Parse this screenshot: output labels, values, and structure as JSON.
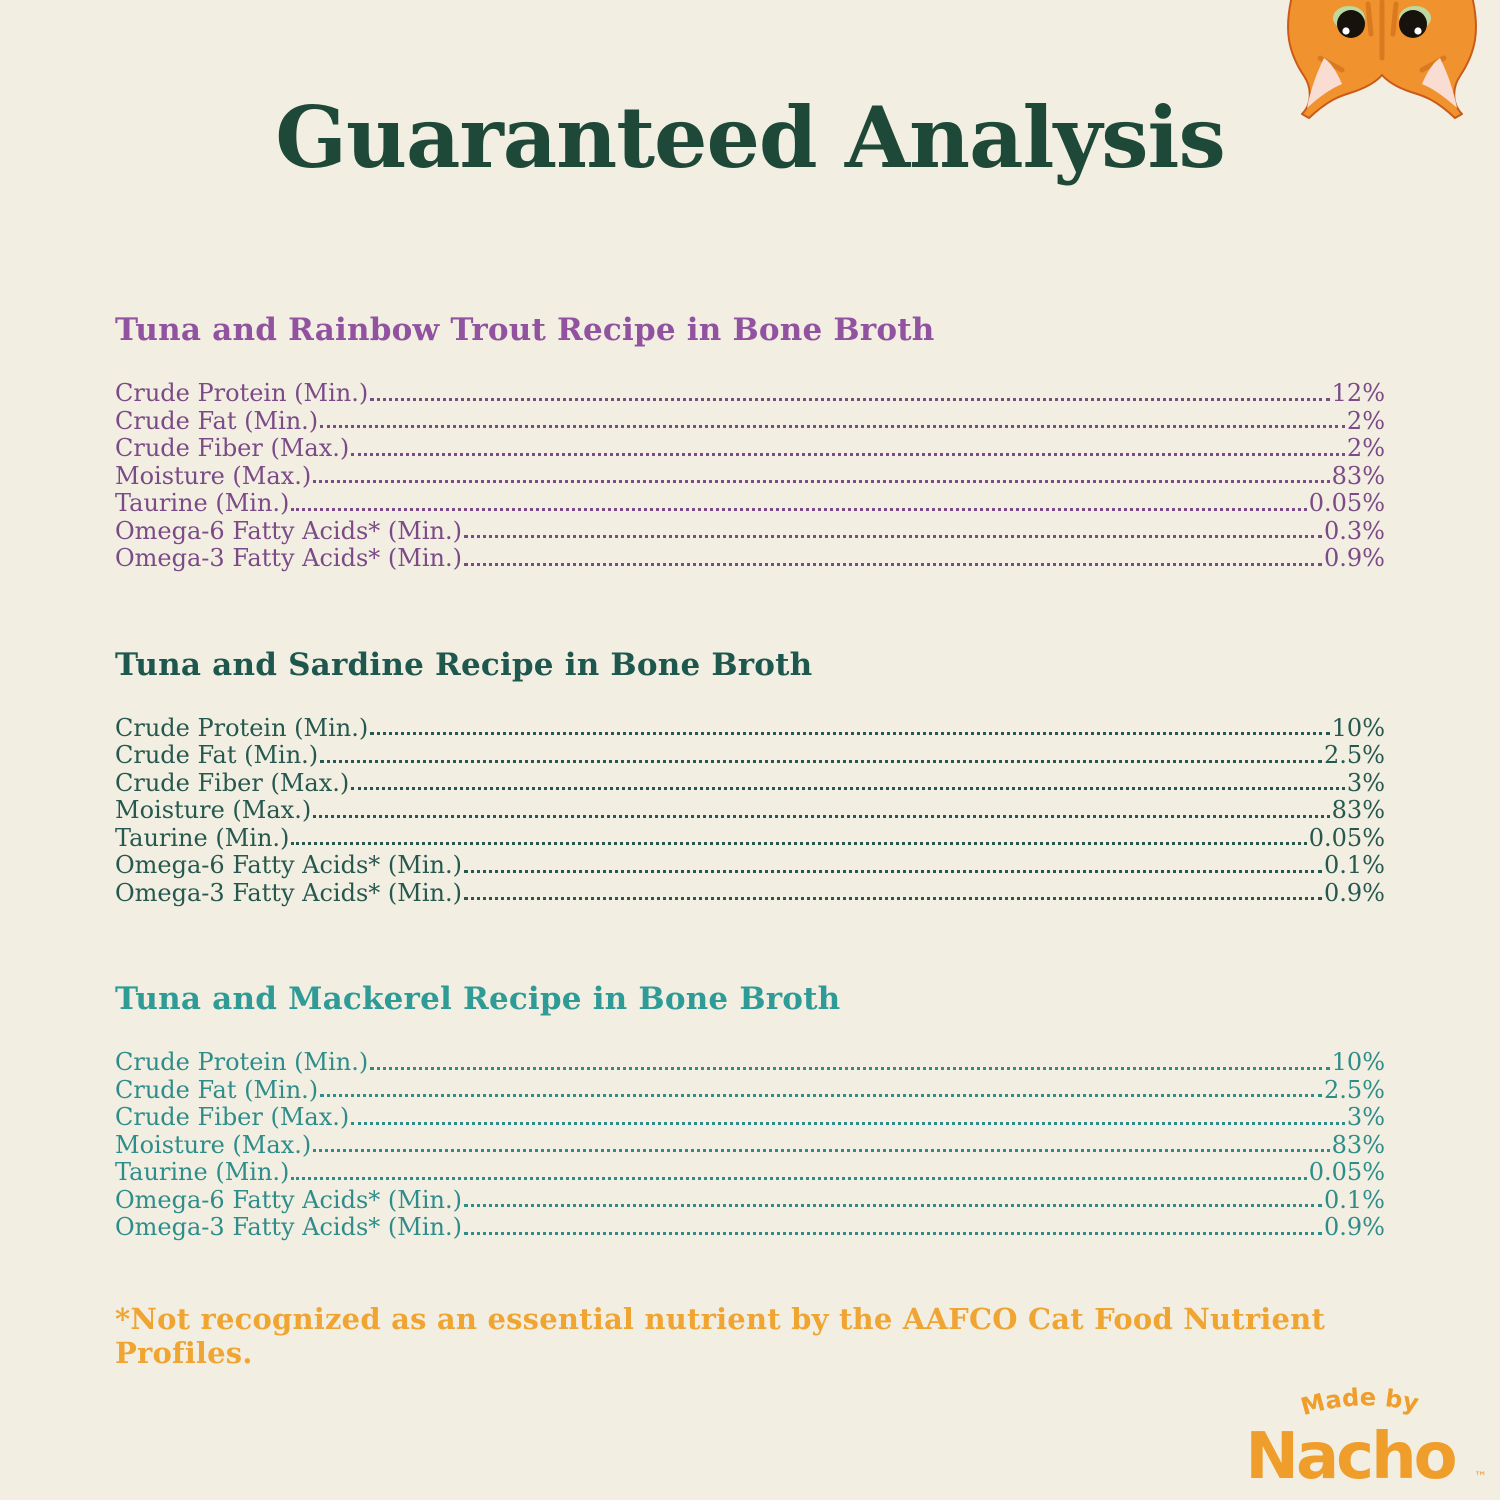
{
  "title": "Guaranteed Analysis",
  "sections": [
    {
      "heading": "Tuna and Rainbow Trout Recipe in Bone Broth",
      "heading_color": "#9153a0",
      "row_color": "#7b4a87",
      "rows": [
        {
          "label": "Crude Protein (Min.)",
          "value": "12%"
        },
        {
          "label": "Crude Fat (Min.)",
          "value": "2%"
        },
        {
          "label": "Crude Fiber (Max.)",
          "value": "2%"
        },
        {
          "label": "Moisture (Max.)",
          "value": "83%"
        },
        {
          "label": "Taurine (Min.)",
          "value": "0.05%"
        },
        {
          "label": "Omega-6 Fatty Acids* (Min.)",
          "value": "0.3%"
        },
        {
          "label": "Omega-3 Fatty Acids* (Min.)",
          "value": "0.9%"
        }
      ]
    },
    {
      "heading": "Tuna and Sardine Recipe in Bone Broth",
      "heading_color": "#1d574e",
      "row_color": "#27584f",
      "rows": [
        {
          "label": "Crude Protein (Min.)",
          "value": "10%"
        },
        {
          "label": "Crude Fat (Min.)",
          "value": "2.5%"
        },
        {
          "label": "Crude Fiber (Max.)",
          "value": "3%"
        },
        {
          "label": "Moisture (Max.)",
          "value": "83%"
        },
        {
          "label": "Taurine (Min.)",
          "value": "0.05%"
        },
        {
          "label": "Omega-6 Fatty Acids* (Min.)",
          "value": "0.1%"
        },
        {
          "label": "Omega-3 Fatty Acids* (Min.)",
          "value": "0.9%"
        }
      ]
    },
    {
      "heading": "Tuna and Mackerel Recipe in Bone Broth",
      "heading_color": "#2f9b96",
      "row_color": "#2e8d8a",
      "rows": [
        {
          "label": "Crude Protein (Min.)",
          "value": "10%"
        },
        {
          "label": "Crude Fat (Min.)",
          "value": "2.5%"
        },
        {
          "label": "Crude Fiber (Max.)",
          "value": "3%"
        },
        {
          "label": "Moisture (Max.)",
          "value": "83%"
        },
        {
          "label": "Taurine (Min.)",
          "value": "0.05%"
        },
        {
          "label": "Omega-6 Fatty Acids* (Min.)",
          "value": "0.1%"
        },
        {
          "label": "Omega-3 Fatty Acids* (Min.)",
          "value": "0.9%"
        }
      ]
    }
  ],
  "footnote": "*Not recognized as an essential nutrient by the AAFCO Cat Food Nutrient Profiles.",
  "logo": {
    "tagline": "Made by",
    "brand": "Nacho",
    "trademark": "™"
  },
  "icons": {
    "cat_illustration": "orange-cat-peeking-down"
  },
  "colors": {
    "background": "#f2efe2",
    "title_green": "#1e4938",
    "footnote_orange": "#f0a431",
    "logo_orange": "#ef9d2b",
    "cat_orange": "#f0932f"
  }
}
